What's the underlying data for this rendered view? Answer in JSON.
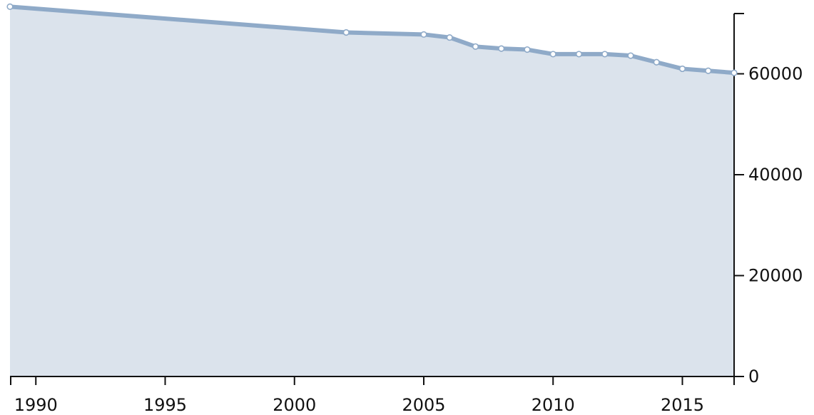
{
  "chart_data": {
    "type": "area",
    "title": "",
    "xlabel": "",
    "ylabel": "",
    "xlim": [
      1989,
      2017
    ],
    "ylim": [
      0,
      73500
    ],
    "x_ticks": [
      1990,
      1995,
      2000,
      2005,
      2010,
      2015
    ],
    "y_ticks": [
      0,
      20000,
      40000,
      60000
    ],
    "y_axis_position": "right",
    "grid": true,
    "legend": "none",
    "colors": {
      "fill": "#dbe3ec",
      "line": "#8faac8",
      "marker_fill": "#ffffff",
      "grid": "#c7d0db",
      "axis": "#111111"
    },
    "series": [
      {
        "x": [
          1989,
          2002,
          2005,
          2006,
          2007,
          2008,
          2009,
          2010,
          2011,
          2012,
          2013,
          2014,
          2015,
          2016,
          2017
        ],
        "values": [
          73300,
          68200,
          67800,
          67200,
          65400,
          65000,
          64800,
          63900,
          63900,
          63900,
          63600,
          62300,
          61000,
          60600,
          60200
        ]
      }
    ]
  }
}
